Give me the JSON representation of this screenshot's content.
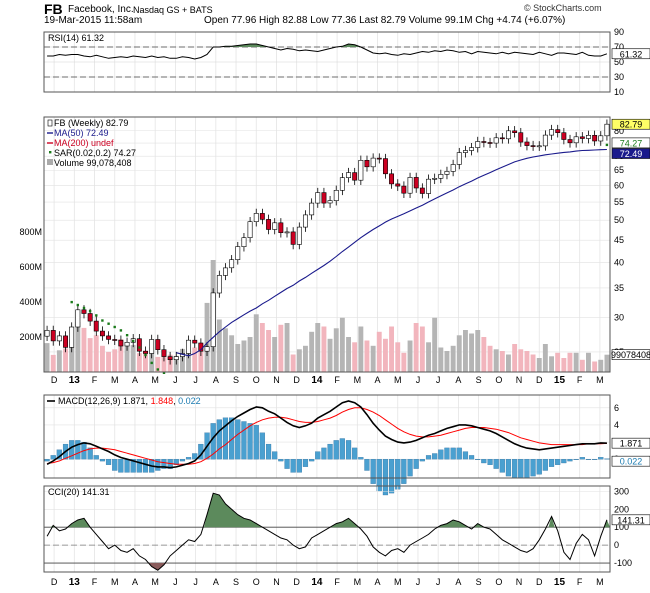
{
  "header": {
    "symbol": "FB",
    "company": "Facebook, Inc.",
    "exchange": "Nasdaq GS + BATS",
    "date": "19-Mar-2015 11:58am",
    "quote": "Open 77.96  High 82.88  Low 77.36  Last 82.79  Volume 99.1M  Chg +4.74 (+6.07%)",
    "credit": "© StockCharts.com",
    "chg_icon": "up-arrow-icon"
  },
  "colors": {
    "candle_up": "#ffffff",
    "candle_down": "#cc0022",
    "ma50": "#1a1a8c",
    "ma200": "#cc0022",
    "sar": "#1a7a1a",
    "volume_up": "#b5b5b5",
    "volume_down": "#f2b5bd",
    "macd": "#000000",
    "signal": "#ff0000",
    "histogram": "#4aa0d0",
    "overbought_fill": "#5c8a5c",
    "oversold_fill": "#8a5c5c"
  },
  "chart_data": [
    {
      "type": "line",
      "name": "rsi",
      "legend": "RSI(14) 61.32",
      "last_label": "61.32",
      "y_ticks": [
        "90",
        "70",
        "50",
        "30",
        "10"
      ],
      "ylim": [
        10,
        90
      ],
      "reference_lines": [
        30,
        70
      ],
      "values": [
        58,
        58,
        60,
        59,
        60,
        60,
        58,
        57,
        59,
        57,
        55,
        56,
        57,
        56,
        58,
        57,
        56,
        58,
        56,
        57,
        55,
        55,
        57,
        56,
        54,
        56,
        60,
        70,
        70,
        71,
        71,
        72,
        73,
        74,
        74,
        72,
        70,
        68,
        66,
        68,
        67,
        65,
        66,
        65,
        64,
        66,
        68,
        70,
        71,
        74,
        73,
        70,
        66,
        62,
        61,
        62,
        60,
        59,
        61,
        60,
        62,
        64,
        63,
        65,
        64,
        66,
        65,
        63,
        64,
        61,
        64,
        63,
        62,
        61,
        63,
        61,
        63,
        62,
        61,
        60,
        63,
        61,
        59,
        62,
        62,
        61,
        60,
        63,
        59,
        58,
        58,
        61
      ]
    },
    {
      "type": "candlestick",
      "name": "price",
      "legend": "FB (Weekly) 82.79",
      "y_ticks": [
        "80",
        "75",
        "70",
        "65",
        "60",
        "55",
        "50",
        "45",
        "40",
        "35",
        "30",
        "25"
      ],
      "log_scale": true,
      "ylim": [
        22.5,
        86
      ],
      "last_labels": [
        {
          "text": "82.79",
          "value": 82.79
        },
        {
          "text": "74.27",
          "value": 74.27
        },
        {
          "text": "72.49",
          "value": 72.49
        }
      ],
      "series": [
        {
          "name": "MA(50) 72.49",
          "kind": "line"
        },
        {
          "name": "MA(200) undef",
          "kind": "line"
        },
        {
          "name": "SAR(0.02,0.2) 74.27",
          "kind": "dots"
        },
        {
          "name": "Volume 99,078,408",
          "kind": "bars"
        }
      ],
      "close": [
        28.0,
        26.5,
        27.2,
        25.6,
        28.5,
        31.2,
        30.6,
        29.4,
        27.9,
        27.2,
        26.7,
        26.6,
        25.8,
        26.3,
        26.8,
        25.1,
        24.8,
        26.7,
        25.3,
        24.4,
        24.0,
        24.4,
        24.8,
        26.6,
        26.2,
        25.1,
        25.7,
        34.1,
        37.4,
        38.9,
        40.6,
        43.5,
        45.6,
        49.6,
        51.8,
        50.2,
        47.6,
        49.3,
        46.8,
        47.0,
        44.0,
        48.2,
        51.4,
        54.7,
        57.8,
        54.7,
        55.4,
        58.5,
        62.5,
        64.2,
        61.7,
        68.5,
        66.2,
        69.3,
        69.1,
        63.8,
        60.5,
        59.8,
        57.6,
        62.6,
        59.2,
        57.5,
        62.0,
        62.3,
        63.6,
        64.6,
        67.0,
        71.3,
        72.1,
        73.2,
        75.6,
        75.2,
        75.0,
        77.1,
        76.7,
        80.0,
        79.2,
        75.4,
        74.0,
        73.8,
        73.9,
        78.2,
        80.5,
        79.2,
        76.4,
        75.1,
        77.5,
        76.8,
        78.1,
        75.8,
        77.9,
        82.79
      ],
      "volume_millions": [
        165,
        98,
        124,
        135,
        188,
        285,
        252,
        194,
        210,
        150,
        115,
        130,
        188,
        150,
        154,
        108,
        122,
        142,
        86,
        85,
        99,
        92,
        132,
        121,
        140,
        160,
        395,
        640,
        300,
        250,
        210,
        160,
        180,
        200,
        330,
        280,
        240,
        200,
        270,
        280,
        100,
        130,
        150,
        230,
        280,
        260,
        190,
        250,
        310,
        200,
        170,
        260,
        180,
        150,
        230,
        190,
        260,
        170,
        110,
        180,
        280,
        260,
        170,
        310,
        140,
        120,
        150,
        210,
        240,
        220,
        240,
        200,
        150,
        130,
        120,
        100,
        160,
        130,
        120,
        100,
        80,
        160,
        90,
        110,
        80,
        110,
        110,
        70,
        110,
        60,
        70,
        99.1
      ],
      "ma50": [
        null,
        null,
        null,
        null,
        null,
        null,
        null,
        null,
        null,
        null,
        null,
        null,
        null,
        null,
        null,
        null,
        null,
        null,
        null,
        null,
        null,
        24.9,
        24.7,
        24.5,
        24.8,
        25.3,
        26.2,
        27.0,
        27.8,
        28.5,
        29.2,
        29.8,
        30.4,
        31.0,
        31.5,
        32.2,
        32.8,
        33.5,
        34.2,
        34.9,
        35.5,
        36.3,
        37.0,
        37.8,
        38.6,
        39.4,
        40.3,
        41.3,
        42.4,
        43.4,
        44.5,
        45.6,
        46.6,
        47.6,
        48.5,
        49.5,
        50.3,
        51.0,
        51.7,
        52.5,
        53.3,
        54.1,
        55.0,
        55.9,
        56.8,
        57.7,
        58.6,
        59.6,
        60.5,
        61.4,
        62.4,
        63.3,
        64.2,
        65.2,
        66.1,
        67.0,
        67.9,
        68.6,
        69.2,
        69.7,
        70.1,
        70.5,
        70.8,
        71.1,
        71.4,
        71.6,
        71.9,
        72.1,
        72.2,
        72.3,
        72.4,
        72.5
      ],
      "sar": [
        null,
        null,
        null,
        null,
        32.5,
        32.0,
        31.5,
        31.0,
        30.3,
        29.5,
        29.0,
        28.5,
        28.0,
        27.3,
        26.5,
        25.6,
        24.6,
        23.6,
        22.8,
        22.4,
        null,
        null,
        null,
        null,
        null,
        null,
        null,
        null,
        null,
        null,
        null,
        null,
        null,
        null,
        null,
        null,
        null,
        null,
        null,
        null,
        null,
        null,
        null,
        null,
        null,
        null,
        null,
        null,
        null,
        null,
        null,
        null,
        null,
        null,
        null,
        null,
        null,
        null,
        null,
        null,
        null,
        null,
        null,
        null,
        null,
        null,
        null,
        null,
        null,
        null,
        null,
        null,
        null,
        null,
        null,
        null,
        null,
        null,
        null,
        null,
        null,
        null,
        null,
        null,
        null,
        null,
        null,
        null,
        null,
        null,
        null,
        74.27
      ]
    },
    {
      "type": "line",
      "name": "macd",
      "legend_label": "MACD(12,26,9)",
      "legend_values": [
        "1.871",
        "1.848",
        "0.022"
      ],
      "y_ticks": [
        "6",
        "4",
        "2",
        "0"
      ],
      "ylim": [
        -2.2,
        7.5
      ],
      "last_labels": [
        "1.871",
        "0.022"
      ],
      "series": [
        {
          "name": "MACD",
          "values": [
            -0.6,
            -0.2,
            0.3,
            0.9,
            1.4,
            1.7,
            1.9,
            1.8,
            1.5,
            1.2,
            0.9,
            0.5,
            0.2,
            0.0,
            -0.2,
            -0.4,
            -0.6,
            -0.8,
            -0.9,
            -0.9,
            -1.0,
            -0.9,
            -0.7,
            -0.5,
            -0.2,
            0.5,
            1.5,
            2.5,
            3.3,
            3.9,
            4.5,
            5.0,
            5.4,
            5.8,
            6.1,
            6.0,
            5.6,
            5.3,
            4.8,
            4.3,
            3.9,
            3.7,
            3.9,
            4.2,
            4.8,
            5.2,
            5.6,
            6.1,
            6.6,
            6.8,
            6.6,
            6.1,
            5.2,
            4.2,
            3.4,
            2.7,
            2.3,
            2.0,
            1.9,
            2.0,
            2.2,
            2.5,
            2.8,
            3.0,
            3.3,
            3.6,
            3.8,
            4.0,
            4.0,
            3.9,
            3.7,
            3.5,
            3.3,
            3.0,
            2.6,
            2.2,
            1.8,
            1.5,
            1.3,
            1.2,
            1.1,
            1.2,
            1.3,
            1.4,
            1.5,
            1.6,
            1.7,
            1.8,
            1.8,
            1.8,
            1.9,
            1.871
          ]
        },
        {
          "name": "Signal",
          "values": [
            -0.5,
            -0.4,
            -0.2,
            0.1,
            0.4,
            0.7,
            1.0,
            1.2,
            1.3,
            1.3,
            1.2,
            1.1,
            0.9,
            0.7,
            0.5,
            0.3,
            0.1,
            -0.1,
            -0.3,
            -0.4,
            -0.5,
            -0.6,
            -0.6,
            -0.6,
            -0.5,
            -0.3,
            0.1,
            0.6,
            1.2,
            1.7,
            2.3,
            2.9,
            3.4,
            3.9,
            4.3,
            4.6,
            4.8,
            4.9,
            4.9,
            4.8,
            4.6,
            4.4,
            4.3,
            4.3,
            4.4,
            4.6,
            4.8,
            5.1,
            5.5,
            5.8,
            6.0,
            6.0,
            5.8,
            5.5,
            5.1,
            4.6,
            4.1,
            3.6,
            3.2,
            2.9,
            2.7,
            2.6,
            2.6,
            2.7,
            2.8,
            3.0,
            3.2,
            3.4,
            3.6,
            3.7,
            3.7,
            3.7,
            3.6,
            3.5,
            3.3,
            3.1,
            2.8,
            2.5,
            2.3,
            2.1,
            1.9,
            1.8,
            1.7,
            1.7,
            1.7,
            1.7,
            1.7,
            1.7,
            1.8,
            1.8,
            1.8,
            1.848
          ]
        }
      ]
    },
    {
      "type": "area",
      "name": "cci",
      "legend": "CCI(20) 141.31",
      "last_label": "141.31",
      "y_ticks": [
        "300",
        "200",
        "100",
        "0",
        "-100"
      ],
      "ylim": [
        -150,
        330
      ],
      "reference_lines": [
        -100,
        100
      ],
      "values": [
        50,
        110,
        80,
        90,
        120,
        140,
        150,
        100,
        60,
        20,
        -20,
        0,
        -30,
        -40,
        -20,
        -60,
        -80,
        -120,
        -140,
        -110,
        -60,
        -30,
        0,
        30,
        20,
        60,
        170,
        290,
        280,
        230,
        200,
        170,
        150,
        140,
        120,
        100,
        80,
        60,
        40,
        30,
        0,
        -20,
        -10,
        40,
        60,
        80,
        100,
        120,
        130,
        150,
        120,
        90,
        50,
        -10,
        -40,
        -60,
        -30,
        -20,
        -40,
        0,
        20,
        40,
        60,
        90,
        110,
        120,
        140,
        130,
        110,
        90,
        120,
        100,
        90,
        60,
        30,
        10,
        -10,
        -30,
        -40,
        -20,
        30,
        90,
        160,
        80,
        -40,
        -80,
        10,
        60,
        30,
        -60,
        50,
        141.31
      ]
    }
  ],
  "x_axis": {
    "months": [
      "D",
      "13",
      "F",
      "M",
      "A",
      "M",
      "J",
      "J",
      "A",
      "S",
      "O",
      "N",
      "D",
      "14",
      "F",
      "M",
      "A",
      "M",
      "J",
      "J",
      "A",
      "S",
      "O",
      "N",
      "D",
      "15",
      "F",
      "M"
    ],
    "bold_labels": [
      "13",
      "14",
      "15"
    ]
  },
  "volume_axis": {
    "ticks": [
      "800M",
      "600M",
      "400M",
      "200M"
    ],
    "last_label": "99078408"
  }
}
